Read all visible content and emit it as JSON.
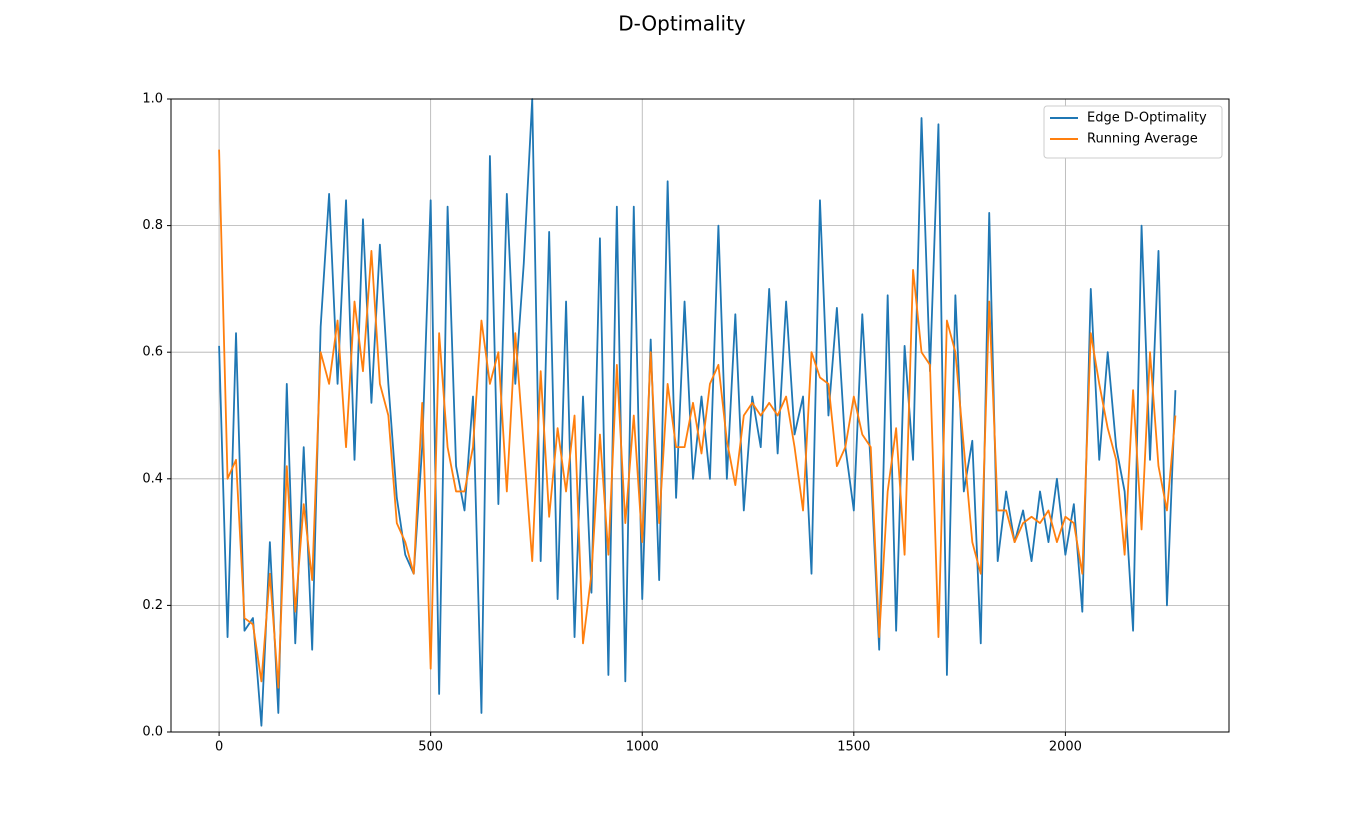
{
  "chart_data": {
    "type": "line",
    "title": "D-Optimality",
    "x": [
      0,
      20,
      40,
      60,
      80,
      100,
      120,
      140,
      160,
      180,
      200,
      220,
      240,
      260,
      280,
      300,
      320,
      340,
      360,
      380,
      400,
      420,
      440,
      460,
      480,
      500,
      520,
      540,
      560,
      580,
      600,
      620,
      640,
      660,
      680,
      700,
      720,
      740,
      760,
      780,
      800,
      820,
      840,
      860,
      880,
      900,
      920,
      940,
      960,
      980,
      1000,
      1020,
      1040,
      1060,
      1080,
      1100,
      1120,
      1140,
      1160,
      1180,
      1200,
      1220,
      1240,
      1260,
      1280,
      1300,
      1320,
      1340,
      1360,
      1380,
      1400,
      1420,
      1440,
      1460,
      1480,
      1500,
      1520,
      1540,
      1560,
      1580,
      1600,
      1620,
      1640,
      1660,
      1680,
      1700,
      1720,
      1740,
      1760,
      1780,
      1800,
      1820,
      1840,
      1860,
      1880,
      1900,
      1920,
      1940,
      1960,
      1980,
      2000,
      2020,
      2040,
      2060,
      2080,
      2100,
      2120,
      2140,
      2160,
      2180,
      2200,
      2220,
      2240,
      2260
    ],
    "series": [
      {
        "name": "Edge D-Optimality",
        "color": "#1f77b4",
        "values": [
          0.61,
          0.15,
          0.63,
          0.16,
          0.18,
          0.01,
          0.3,
          0.03,
          0.55,
          0.14,
          0.45,
          0.13,
          0.64,
          0.85,
          0.55,
          0.84,
          0.43,
          0.81,
          0.52,
          0.77,
          0.55,
          0.37,
          0.28,
          0.25,
          0.45,
          0.84,
          0.06,
          0.83,
          0.42,
          0.35,
          0.53,
          0.03,
          0.91,
          0.36,
          0.85,
          0.55,
          0.74,
          1.0,
          0.27,
          0.79,
          0.21,
          0.68,
          0.15,
          0.53,
          0.22,
          0.78,
          0.09,
          0.83,
          0.08,
          0.83,
          0.21,
          0.62,
          0.24,
          0.87,
          0.37,
          0.68,
          0.4,
          0.53,
          0.4,
          0.8,
          0.4,
          0.66,
          0.35,
          0.53,
          0.45,
          0.7,
          0.44,
          0.68,
          0.47,
          0.53,
          0.25,
          0.84,
          0.5,
          0.67,
          0.45,
          0.35,
          0.66,
          0.42,
          0.13,
          0.69,
          0.16,
          0.61,
          0.43,
          0.97,
          0.57,
          0.96,
          0.09,
          0.69,
          0.38,
          0.46,
          0.14,
          0.82,
          0.27,
          0.38,
          0.3,
          0.35,
          0.27,
          0.38,
          0.3,
          0.4,
          0.28,
          0.36,
          0.19,
          0.7,
          0.43,
          0.6,
          0.45,
          0.38,
          0.16,
          0.8,
          0.43,
          0.76,
          0.2,
          0.54
        ]
      },
      {
        "name": "Running Average",
        "color": "#ff7f0e",
        "values": [
          0.92,
          0.4,
          0.43,
          0.18,
          0.17,
          0.08,
          0.25,
          0.07,
          0.42,
          0.19,
          0.36,
          0.24,
          0.6,
          0.55,
          0.65,
          0.45,
          0.68,
          0.57,
          0.76,
          0.55,
          0.5,
          0.33,
          0.3,
          0.25,
          0.52,
          0.1,
          0.63,
          0.45,
          0.38,
          0.38,
          0.45,
          0.65,
          0.55,
          0.6,
          0.38,
          0.63,
          0.45,
          0.27,
          0.57,
          0.34,
          0.48,
          0.38,
          0.5,
          0.14,
          0.25,
          0.47,
          0.28,
          0.58,
          0.33,
          0.5,
          0.3,
          0.6,
          0.33,
          0.55,
          0.45,
          0.45,
          0.52,
          0.44,
          0.55,
          0.58,
          0.46,
          0.39,
          0.5,
          0.52,
          0.5,
          0.52,
          0.5,
          0.53,
          0.45,
          0.35,
          0.6,
          0.56,
          0.55,
          0.42,
          0.45,
          0.53,
          0.47,
          0.45,
          0.15,
          0.38,
          0.48,
          0.28,
          0.73,
          0.6,
          0.58,
          0.15,
          0.65,
          0.6,
          0.45,
          0.3,
          0.25,
          0.68,
          0.35,
          0.35,
          0.3,
          0.33,
          0.34,
          0.33,
          0.35,
          0.3,
          0.34,
          0.33,
          0.25,
          0.63,
          0.55,
          0.48,
          0.43,
          0.28,
          0.54,
          0.32,
          0.6,
          0.42,
          0.35,
          0.5
        ]
      }
    ],
    "xlim": [
      -113.65,
      2386.65
    ],
    "xticks": [
      0,
      500,
      1000,
      1500,
      2000
    ],
    "ylim": [
      0,
      1
    ],
    "yticks": [
      {
        "value": 0,
        "label": "0.0"
      },
      0.2,
      0.4,
      0.6,
      0.8,
      {
        "value": 1,
        "label": "1.0"
      }
    ],
    "grid": true,
    "legend": "upper-right"
  }
}
